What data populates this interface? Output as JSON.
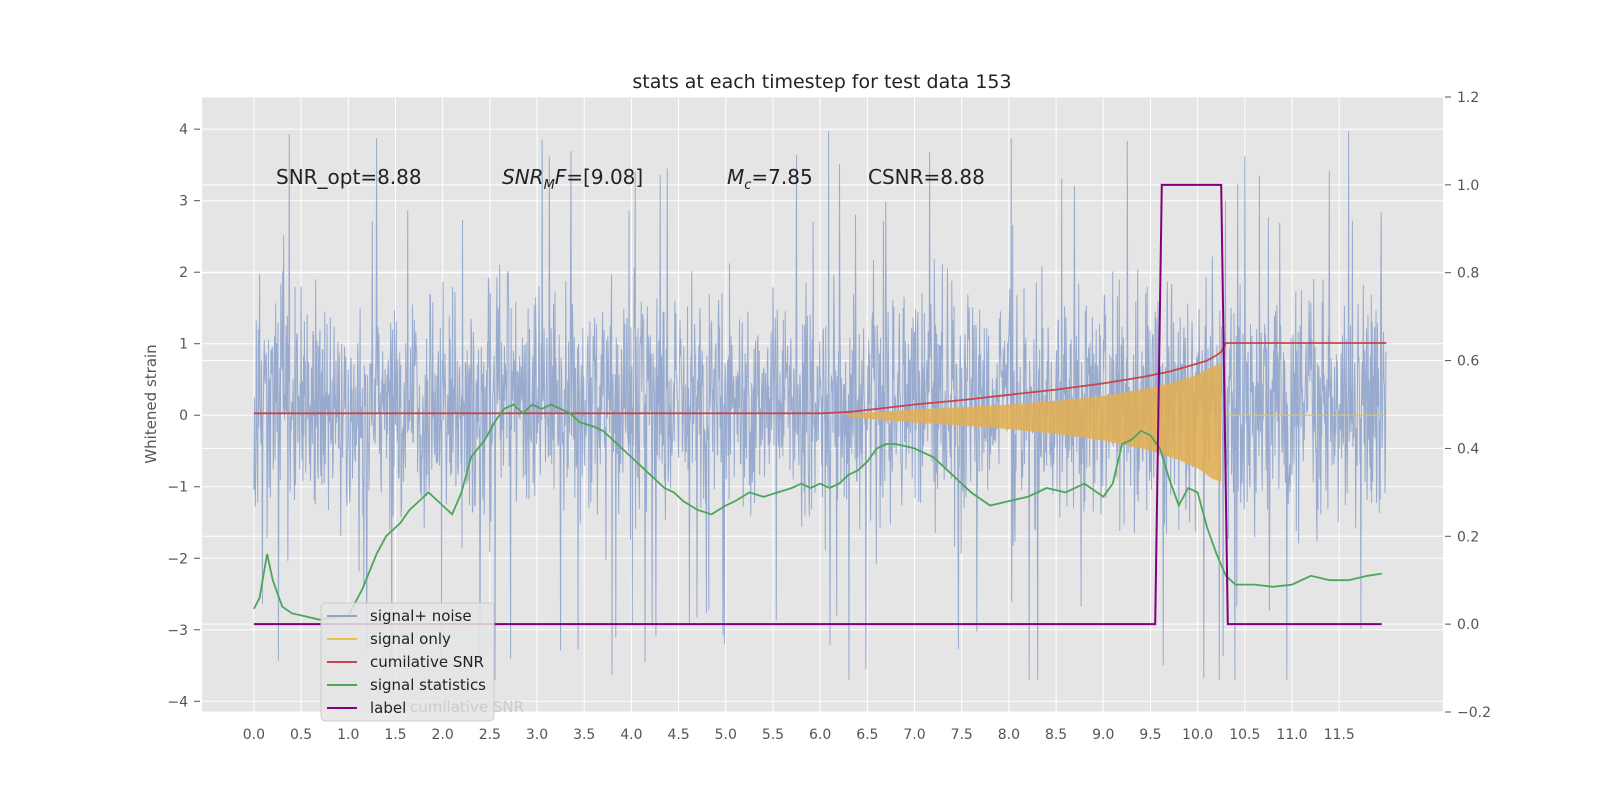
{
  "chart_data": {
    "type": "line",
    "title": "stats at each timestep for test data 153",
    "ylabel": "Whitened strain",
    "xlabel": "",
    "xlim": [
      -0.55,
      12.6
    ],
    "ylim": [
      -4.15,
      4.45
    ],
    "y2lim": [
      -0.2,
      1.2
    ],
    "grid": true,
    "x_ticks": [
      "0.0",
      "0.5",
      "1.0",
      "1.5",
      "2.0",
      "2.5",
      "3.0",
      "3.5",
      "4.0",
      "4.5",
      "5.0",
      "5.5",
      "6.0",
      "6.5",
      "7.0",
      "7.5",
      "8.0",
      "8.5",
      "9.0",
      "9.5",
      "10.0",
      "10.5",
      "11.0",
      "11.5"
    ],
    "y_ticks": [
      "4",
      "3",
      "2",
      "1",
      "0",
      "−1",
      "−2",
      "−3",
      "−4"
    ],
    "y2_ticks": [
      "1.2",
      "1.0",
      "0.8",
      "0.6",
      "0.4",
      "0.2",
      "0.0",
      "−0.2"
    ],
    "annotations": [
      {
        "text": "SNR_opt=8.88",
        "x": 0.2,
        "y": 3.3
      },
      {
        "text": "SNR_MF=[9.08]",
        "x": 2.6,
        "y": 3.3
      },
      {
        "text": "M_c=7.85",
        "x": 5.0,
        "y": 3.3
      },
      {
        "text": "CSNR=8.88",
        "x": 6.5,
        "y": 3.3
      }
    ],
    "legend": {
      "placement": "lower-left",
      "entries": [
        {
          "label": "signal+ noise",
          "color": "#8fa4cc"
        },
        {
          "label": "signal only",
          "color": "#e8c24a"
        },
        {
          "label": "cumilative SNR",
          "color": "#c8434a"
        },
        {
          "label": "signal statistics",
          "color": "#4ca65a"
        },
        {
          "label": "label",
          "color": "#800080"
        }
      ],
      "hidden_text": "cumilative SNR"
    },
    "series": [
      {
        "name": "signal+ noise",
        "axis": "left",
        "style": "dense-noise",
        "x_range": [
          0,
          12.0
        ],
        "typical_band": [
          -1.7,
          2.0
        ],
        "peak_range": [
          -3.7,
          4.1
        ]
      },
      {
        "name": "signal only",
        "axis": "left",
        "style": "chirp-envelope",
        "x": [
          6.3,
          7.0,
          7.5,
          8.0,
          8.5,
          9.0,
          9.5,
          9.8,
          10.0,
          10.15,
          10.25
        ],
        "amplitude": [
          0.02,
          0.08,
          0.11,
          0.15,
          0.2,
          0.27,
          0.38,
          0.48,
          0.57,
          0.68,
          0.72
        ]
      },
      {
        "name": "cumilative SNR",
        "axis": "right",
        "x": [
          0,
          6.0,
          6.3,
          6.6,
          7.0,
          7.5,
          8.0,
          8.5,
          9.0,
          9.4,
          9.7,
          9.9,
          10.1,
          10.2,
          10.25,
          10.3,
          12.0
        ],
        "y": [
          0.48,
          0.48,
          0.483,
          0.49,
          0.5,
          0.51,
          0.522,
          0.534,
          0.548,
          0.562,
          0.575,
          0.587,
          0.6,
          0.612,
          0.62,
          0.64,
          0.64
        ]
      },
      {
        "name": "signal statistics",
        "axis": "right",
        "x": [
          0.0,
          0.06,
          0.14,
          0.2,
          0.3,
          0.4,
          0.5,
          0.7,
          1.0,
          1.15,
          1.3,
          1.4,
          1.55,
          1.65,
          1.75,
          1.85,
          2.0,
          2.1,
          2.2,
          2.3,
          2.45,
          2.55,
          2.65,
          2.75,
          2.85,
          2.95,
          3.05,
          3.15,
          3.25,
          3.35,
          3.45,
          3.6,
          3.7,
          3.8,
          3.9,
          4.05,
          4.2,
          4.35,
          4.45,
          4.55,
          4.7,
          4.85,
          5.0,
          5.1,
          5.25,
          5.4,
          5.55,
          5.7,
          5.8,
          5.9,
          6.0,
          6.1,
          6.2,
          6.3,
          6.4,
          6.5,
          6.6,
          6.7,
          6.8,
          7.0,
          7.2,
          7.4,
          7.6,
          7.8,
          8.0,
          8.2,
          8.4,
          8.6,
          8.8,
          9.0,
          9.1,
          9.2,
          9.3,
          9.4,
          9.5,
          9.6,
          9.7,
          9.8,
          9.9,
          10.0,
          10.1,
          10.2,
          10.3,
          10.4,
          10.6,
          10.8,
          11.0,
          11.2,
          11.4,
          11.6,
          11.8,
          11.95
        ],
        "y": [
          0.035,
          0.06,
          0.16,
          0.1,
          0.04,
          0.025,
          0.02,
          0.01,
          0.02,
          0.08,
          0.16,
          0.2,
          0.23,
          0.26,
          0.28,
          0.3,
          0.27,
          0.25,
          0.3,
          0.38,
          0.42,
          0.46,
          0.49,
          0.5,
          0.48,
          0.5,
          0.49,
          0.5,
          0.49,
          0.48,
          0.46,
          0.45,
          0.44,
          0.42,
          0.4,
          0.37,
          0.34,
          0.31,
          0.3,
          0.28,
          0.26,
          0.25,
          0.27,
          0.28,
          0.3,
          0.29,
          0.3,
          0.31,
          0.32,
          0.31,
          0.32,
          0.31,
          0.32,
          0.34,
          0.35,
          0.37,
          0.4,
          0.41,
          0.41,
          0.4,
          0.38,
          0.34,
          0.3,
          0.27,
          0.28,
          0.29,
          0.31,
          0.3,
          0.32,
          0.29,
          0.32,
          0.41,
          0.42,
          0.44,
          0.43,
          0.4,
          0.33,
          0.27,
          0.31,
          0.3,
          0.22,
          0.16,
          0.11,
          0.09,
          0.09,
          0.085,
          0.09,
          0.11,
          0.1,
          0.1,
          0.11,
          0.115
        ]
      },
      {
        "name": "label",
        "axis": "right",
        "x": [
          0,
          9.55,
          9.62,
          10.25,
          10.32,
          11.95
        ],
        "y": [
          0.0,
          0.0,
          1.0,
          1.0,
          0.0,
          0.0
        ]
      }
    ]
  }
}
